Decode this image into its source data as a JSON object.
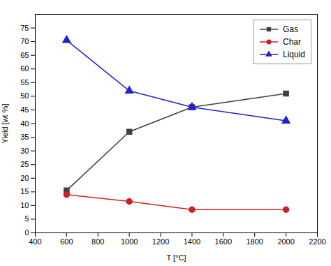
{
  "chart_data": {
    "type": "line",
    "x": [
      600,
      1000,
      1400,
      2000
    ],
    "series": [
      {
        "name": "Gas",
        "color": "#404040",
        "marker": "square",
        "values": [
          15.5,
          37.0,
          46.0,
          51.0
        ]
      },
      {
        "name": "Char",
        "color": "#cc2222",
        "marker": "circle",
        "values": [
          14.0,
          11.5,
          8.5,
          8.5
        ]
      },
      {
        "name": "Liquid",
        "color": "#2222cc",
        "marker": "triangle",
        "values": [
          70.5,
          52.0,
          46.0,
          41.0
        ]
      }
    ],
    "xlabel": "T [°C]",
    "ylabel": "Yield [wt %]",
    "xlim": [
      400,
      2200
    ],
    "ylim": [
      0,
      80
    ],
    "xticks": [
      400,
      600,
      800,
      1000,
      1200,
      1400,
      1600,
      1800,
      2000,
      2200
    ],
    "yticks": [
      0,
      5,
      10,
      15,
      20,
      25,
      30,
      35,
      40,
      45,
      50,
      55,
      60,
      65,
      70,
      75
    ],
    "legend": "upper right",
    "grid": false
  }
}
